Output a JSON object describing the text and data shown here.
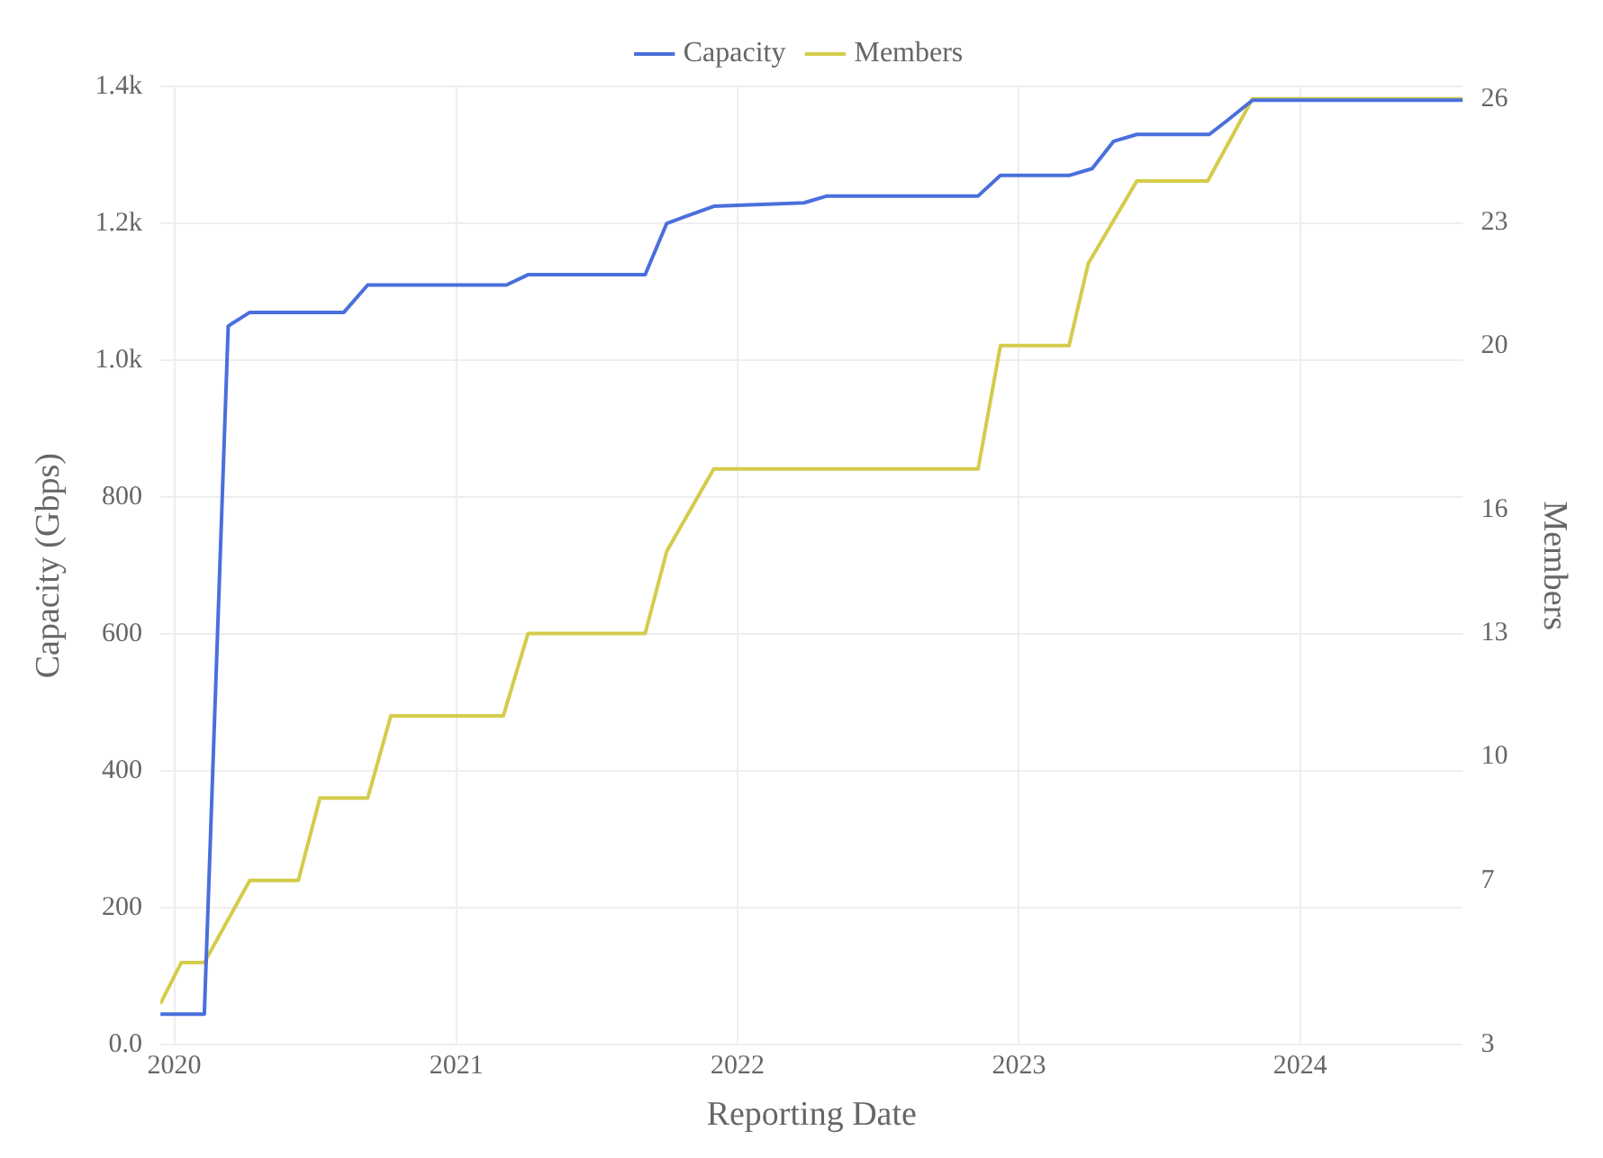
{
  "chart_data": {
    "type": "line",
    "xlabel": "Reporting Date",
    "ylabel": "Capacity (Gbps)",
    "y2label": "Members",
    "xlim": [
      "2019-12-14",
      "2024-07-30"
    ],
    "xticks": [
      "2020",
      "2021",
      "2022",
      "2023",
      "2024"
    ],
    "ylim": [
      0,
      1400
    ],
    "yticks": [
      {
        "value": 0,
        "label": "0.0"
      },
      200,
      400,
      600,
      800,
      {
        "value": 1000,
        "label": "1.0k"
      },
      {
        "value": 1200,
        "label": "1.2k"
      },
      {
        "value": 1400,
        "label": "1.4k"
      }
    ],
    "y2lim": [
      3,
      26.3
    ],
    "y2ticks": [
      3,
      7,
      10,
      13,
      16,
      20,
      23,
      26
    ],
    "grid": true,
    "legend": "top",
    "marker": "none",
    "line_style": "solid",
    "series": [
      {
        "name": "Capacity",
        "color": "#4a6fdc",
        "x": [
          "2019-12-14",
          "2020-02-09",
          "2020-03-11",
          "2020-04-08",
          "2020-08-08",
          "2020-09-08",
          "2021-03-07",
          "2021-04-04",
          "2021-09-03",
          "2021-10-01",
          "2021-12-01",
          "2022-03-28",
          "2022-04-27",
          "2022-11-09",
          "2022-12-08",
          "2023-03-07",
          "2023-04-06",
          "2023-05-04",
          "2023-06-03",
          "2023-09-05",
          "2023-09-28",
          "2023-10-31",
          "2024-07-30"
        ],
        "values": [
          45,
          45,
          1050,
          1070,
          1070,
          1110,
          1110,
          1125,
          1125,
          1200,
          1225,
          1230,
          1240,
          1240,
          1270,
          1270,
          1280,
          1320,
          1330,
          1330,
          1350,
          1380,
          1380
        ]
      },
      {
        "name": "Members",
        "color": "#d4cc4a",
        "axis": "y2",
        "x": [
          "2019-12-14",
          "2020-01-10",
          "2020-02-09",
          "2020-04-08",
          "2020-06-10",
          "2020-07-08",
          "2020-09-08",
          "2020-10-08",
          "2021-03-03",
          "2021-04-04",
          "2021-09-03",
          "2021-10-01",
          "2021-12-01",
          "2022-11-09",
          "2022-12-08",
          "2023-03-07",
          "2023-04-01",
          "2023-06-03",
          "2023-09-03",
          "2023-10-31",
          "2024-07-30"
        ],
        "values": [
          4,
          5,
          5,
          7,
          7,
          9,
          9,
          11,
          11,
          13,
          13,
          15,
          17,
          17,
          20,
          20,
          22,
          24,
          24,
          26,
          26
        ]
      }
    ]
  }
}
